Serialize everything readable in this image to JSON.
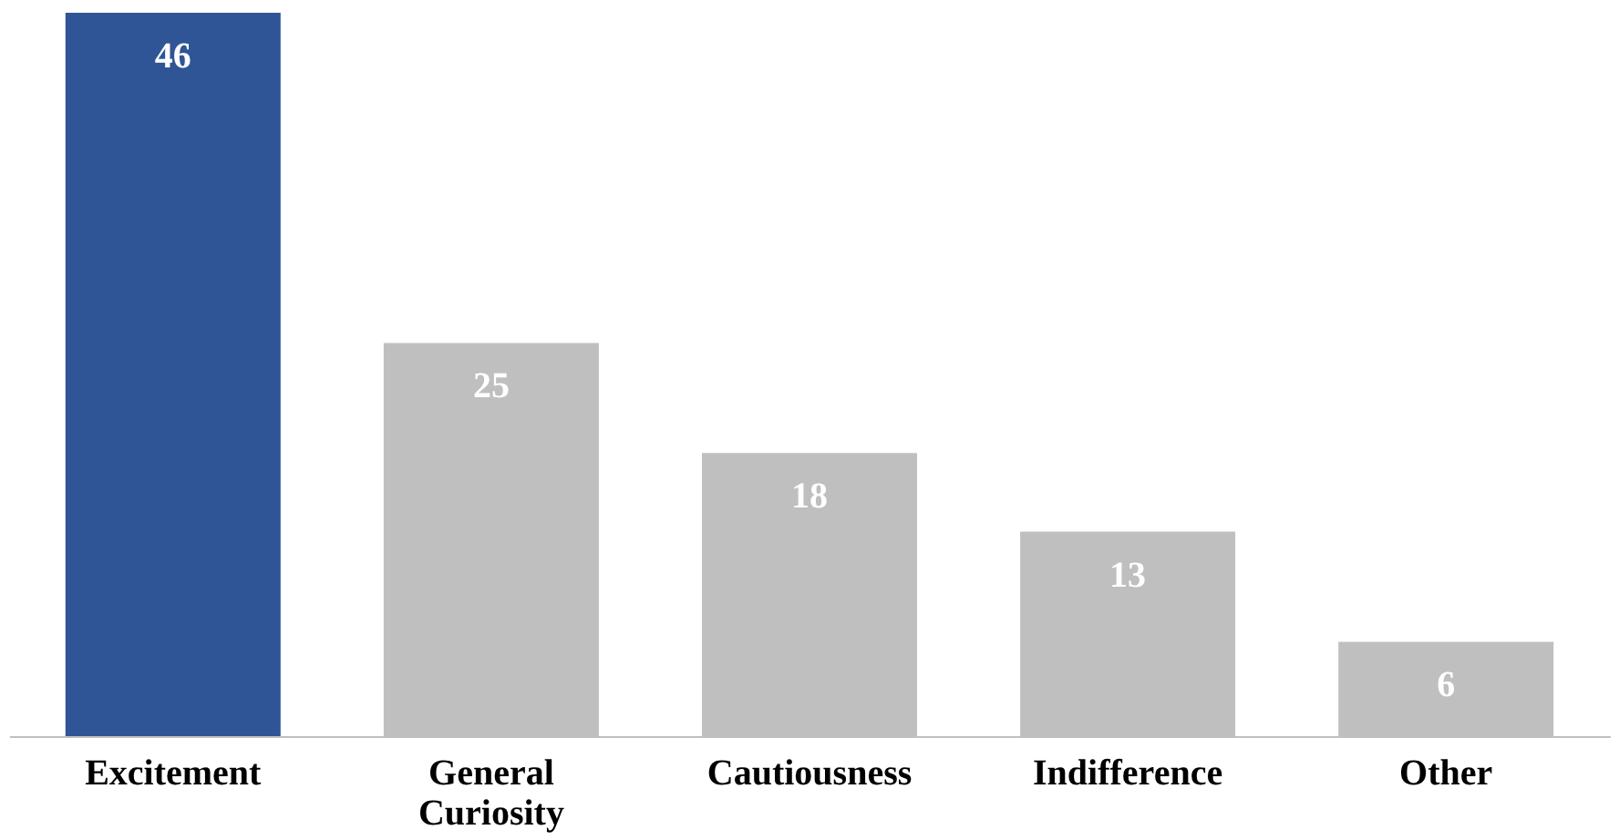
{
  "chart_data": {
    "type": "bar",
    "categories": [
      "Excitement",
      "General Curiosity",
      "Cautiousness",
      "Indifference",
      "Other"
    ],
    "values": [
      46,
      25,
      18,
      13,
      6
    ],
    "colors": [
      "#2f5597",
      "#bfbfbf",
      "#bfbfbf",
      "#bfbfbf",
      "#bfbfbf"
    ],
    "data_labels": true,
    "grid": false
  }
}
